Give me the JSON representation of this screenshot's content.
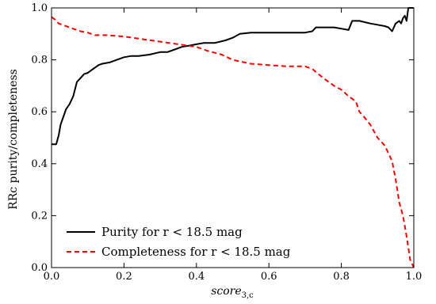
{
  "chart_data": {
    "type": "line",
    "title": "",
    "xlabel": "score",
    "xlabel_sub": "3,c",
    "ylabel": "RRc purity/completeness",
    "xlim": [
      0.0,
      1.0
    ],
    "ylim": [
      0.0,
      1.0
    ],
    "xticks": [
      "0.0",
      "0.2",
      "0.4",
      "0.6",
      "0.8",
      "1.0"
    ],
    "yticks": [
      "0.0",
      "0.2",
      "0.4",
      "0.6",
      "0.8",
      "1.0"
    ],
    "legend_position": "bottom-left",
    "grid": false,
    "series": [
      {
        "name": "Purity for r < 18.5 mag",
        "color": "#000000",
        "style": "solid",
        "x": [
          0.0,
          0.013,
          0.02,
          0.025,
          0.03,
          0.035,
          0.04,
          0.05,
          0.06,
          0.07,
          0.08,
          0.09,
          0.1,
          0.11,
          0.12,
          0.13,
          0.14,
          0.16,
          0.18,
          0.2,
          0.22,
          0.24,
          0.27,
          0.3,
          0.32,
          0.34,
          0.36,
          0.38,
          0.4,
          0.42,
          0.45,
          0.48,
          0.5,
          0.52,
          0.55,
          0.6,
          0.65,
          0.7,
          0.72,
          0.73,
          0.75,
          0.78,
          0.8,
          0.82,
          0.83,
          0.85,
          0.88,
          0.9,
          0.92,
          0.93,
          0.94,
          0.95,
          0.96,
          0.965,
          0.97,
          0.975,
          0.98,
          0.985,
          1.0
        ],
        "y": [
          0.475,
          0.475,
          0.51,
          0.55,
          0.57,
          0.59,
          0.61,
          0.63,
          0.66,
          0.715,
          0.73,
          0.745,
          0.75,
          0.76,
          0.77,
          0.78,
          0.785,
          0.79,
          0.8,
          0.81,
          0.815,
          0.815,
          0.82,
          0.83,
          0.83,
          0.84,
          0.85,
          0.855,
          0.86,
          0.865,
          0.865,
          0.875,
          0.885,
          0.9,
          0.905,
          0.905,
          0.905,
          0.905,
          0.91,
          0.925,
          0.925,
          0.925,
          0.92,
          0.915,
          0.95,
          0.95,
          0.94,
          0.935,
          0.93,
          0.925,
          0.91,
          0.94,
          0.95,
          0.94,
          0.96,
          0.97,
          0.95,
          1.0,
          1.0
        ]
      },
      {
        "name": "Completeness for r < 18.5 mag",
        "color": "#ff0000",
        "style": "dashed",
        "x": [
          0.0,
          0.01,
          0.02,
          0.03,
          0.05,
          0.08,
          0.1,
          0.12,
          0.15,
          0.2,
          0.25,
          0.3,
          0.35,
          0.4,
          0.43,
          0.47,
          0.5,
          0.55,
          0.6,
          0.65,
          0.7,
          0.72,
          0.75,
          0.78,
          0.8,
          0.82,
          0.84,
          0.85,
          0.86,
          0.88,
          0.9,
          0.92,
          0.94,
          0.95,
          0.96,
          0.97,
          0.98,
          0.99,
          1.0
        ],
        "y": [
          0.965,
          0.955,
          0.94,
          0.935,
          0.925,
          0.91,
          0.905,
          0.895,
          0.895,
          0.89,
          0.88,
          0.87,
          0.86,
          0.85,
          0.835,
          0.82,
          0.8,
          0.785,
          0.78,
          0.775,
          0.775,
          0.765,
          0.73,
          0.7,
          0.685,
          0.66,
          0.64,
          0.6,
          0.585,
          0.55,
          0.5,
          0.47,
          0.41,
          0.34,
          0.25,
          0.2,
          0.12,
          0.03,
          0.0
        ]
      }
    ]
  }
}
